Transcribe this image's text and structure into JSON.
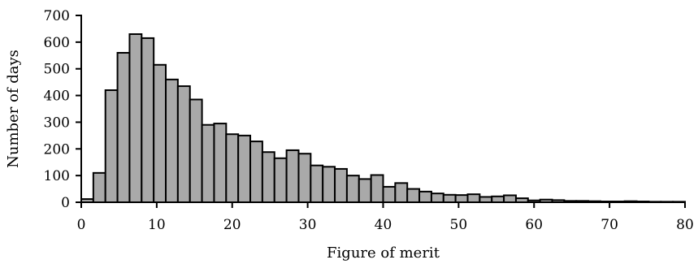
{
  "chart_data": {
    "type": "bar",
    "title": "",
    "xlabel": "Figure of merit",
    "ylabel": "Number of days",
    "xlim": [
      0,
      80
    ],
    "ylim": [
      0,
      700
    ],
    "bin_width": 1.6,
    "x_ticks": [
      0,
      10,
      20,
      30,
      40,
      50,
      60,
      70,
      80
    ],
    "y_ticks": [
      0,
      100,
      200,
      300,
      400,
      500,
      600,
      700
    ],
    "grid": false,
    "legend": "none",
    "bar_color": "#a9a9a9",
    "edge_color": "#000000",
    "bin_starts": [
      0,
      1.6,
      3.2,
      4.8,
      6.4,
      8.0,
      9.6,
      11.2,
      12.8,
      14.4,
      16.0,
      17.6,
      19.2,
      20.8,
      22.4,
      24.0,
      25.6,
      27.2,
      28.8,
      30.4,
      32.0,
      33.6,
      35.2,
      36.8,
      38.4,
      40.0,
      41.6,
      43.2,
      44.8,
      46.4,
      48.0,
      49.6,
      51.2,
      52.8,
      54.4,
      56.0,
      57.6,
      59.2,
      60.8,
      62.4,
      64.0,
      65.6,
      67.2,
      68.8,
      70.4,
      72.0,
      73.6,
      75.2,
      76.8,
      78.4
    ],
    "values": [
      12,
      110,
      420,
      560,
      630,
      615,
      515,
      460,
      435,
      385,
      290,
      295,
      255,
      250,
      228,
      188,
      165,
      195,
      182,
      138,
      133,
      125,
      100,
      87,
      102,
      58,
      72,
      50,
      40,
      33,
      28,
      27,
      30,
      20,
      22,
      26,
      15,
      7,
      10,
      8,
      5,
      5,
      4,
      3,
      3,
      4,
      3,
      2,
      2,
      2
    ]
  }
}
